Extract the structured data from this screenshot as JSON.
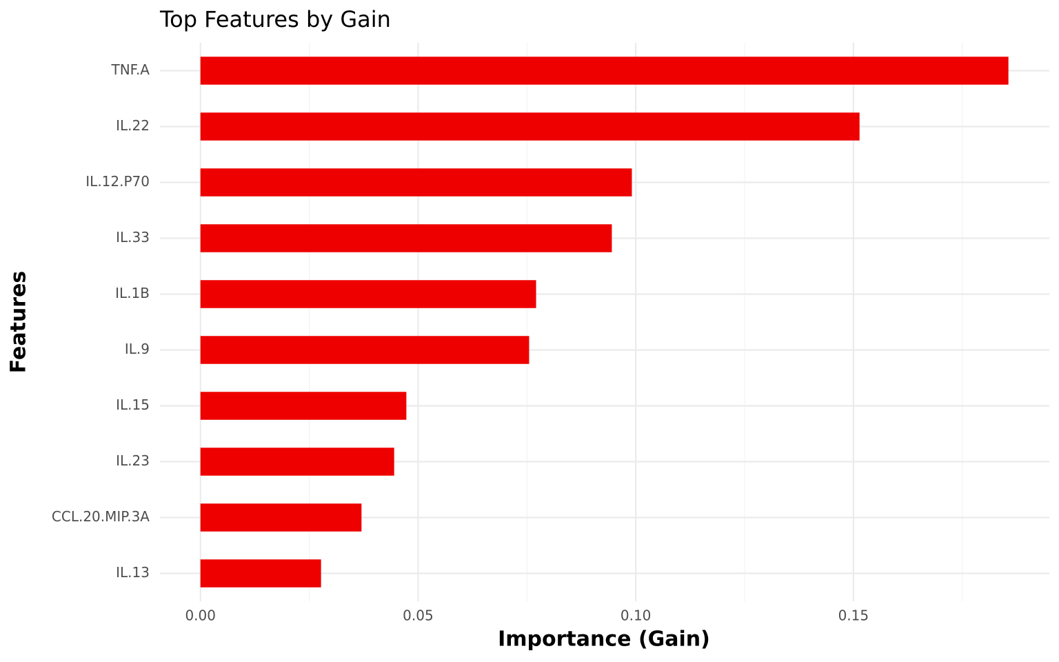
{
  "chart_data": {
    "type": "bar",
    "orientation": "horizontal",
    "title": "Top Features by Gain",
    "xlabel": "Importance (Gain)",
    "ylabel": "Features",
    "categories": [
      "TNF.A",
      "IL.22",
      "IL.12.P70",
      "IL.33",
      "IL.1B",
      "IL.9",
      "IL.15",
      "IL.23",
      "CCL.20.MIP.3A",
      "IL.13"
    ],
    "values": [
      0.1856,
      0.1514,
      0.0991,
      0.0945,
      0.0771,
      0.0755,
      0.0473,
      0.0445,
      0.037,
      0.0277
    ],
    "color": "#ee0000",
    "xlim": [
      -0.0093,
      0.195
    ],
    "xticks": [
      {
        "value": 0,
        "label": "0.00"
      },
      {
        "value": 0.05,
        "label": "0.05"
      },
      {
        "value": 0.1,
        "label": "0.10"
      },
      {
        "value": 0.15,
        "label": "0.15"
      }
    ],
    "xminor_ticks": [
      0.025,
      0.075,
      0.125,
      0.175
    ],
    "grid": true
  }
}
